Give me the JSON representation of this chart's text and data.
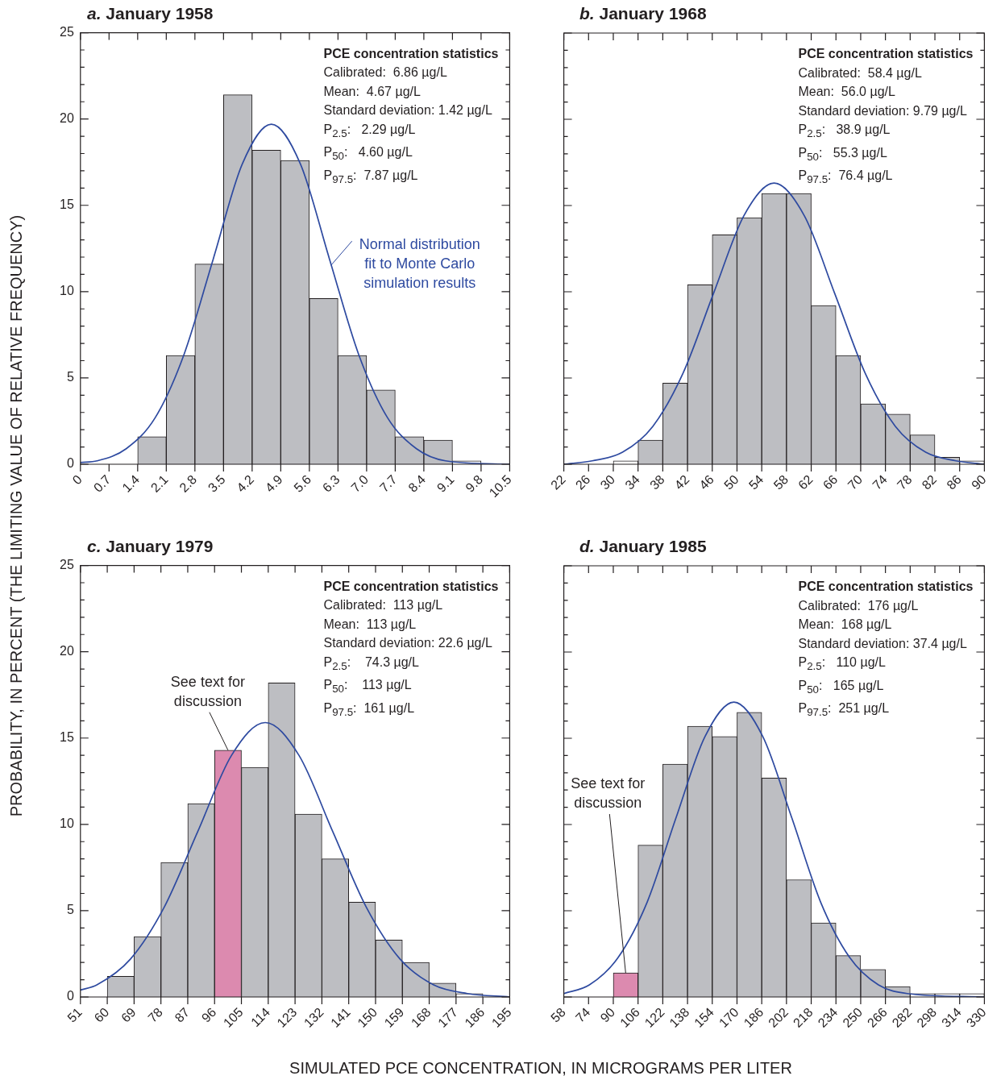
{
  "chart_data": [
    {
      "type": "histogram",
      "title": "a. January 1958",
      "xlabel": "SIMULATED PCE CONCENTRATION, IN MICROGRAMS PER LITER",
      "ylabel": "PROBABILITY, IN PERCENT (THE LIMITING VALUE OF RELATIVE FREQUENCY)",
      "bins": [
        0,
        0.7,
        1.4,
        2.1,
        2.8,
        3.5,
        4.2,
        4.9,
        5.6,
        6.3,
        7,
        7.7,
        8.4,
        9.1,
        9.8,
        10.5
      ],
      "xlim": [
        0,
        10.5
      ],
      "xticks": [
        0,
        0.7,
        1.4,
        2.1,
        2.8,
        3.5,
        4.2,
        4.9,
        5.6,
        6.3,
        {
          "value": 7,
          "label": "7.0"
        },
        7.7,
        8.4,
        9.1,
        9.8,
        10.5
      ],
      "ylim": [
        0,
        25
      ],
      "yticks": [
        0,
        {
          "value": 1,
          "label": null
        },
        {
          "value": 2,
          "label": null
        },
        {
          "value": 3,
          "label": null
        },
        {
          "value": 4,
          "label": null
        },
        5,
        {
          "value": 6,
          "label": null
        },
        {
          "value": 7,
          "label": null
        },
        {
          "value": 8,
          "label": null
        },
        {
          "value": 9,
          "label": null
        },
        10,
        {
          "value": 11,
          "label": null
        },
        {
          "value": 12,
          "label": null
        },
        {
          "value": 13,
          "label": null
        },
        {
          "value": 14,
          "label": null
        },
        15,
        {
          "value": 16,
          "label": null
        },
        {
          "value": 17,
          "label": null
        },
        {
          "value": 18,
          "label": null
        },
        {
          "value": 19,
          "label": null
        },
        20,
        {
          "value": 21,
          "label": null
        },
        {
          "value": 22,
          "label": null
        },
        {
          "value": 23,
          "label": null
        },
        {
          "value": 24,
          "label": null
        },
        25
      ],
      "series": [
        {
          "type": "histogram",
          "values": [
            0,
            0,
            1.6,
            6.3,
            11.6,
            21.4,
            18.2,
            17.6,
            9.6,
            6.3,
            4.3,
            1.6,
            1.4,
            0.2,
            0
          ],
          "colors": [
            "#bdbec2",
            "#bdbec2",
            "#bdbec2",
            "#bdbec2",
            "#bdbec2",
            "#bdbec2",
            "#bdbec2",
            "#bdbec2",
            "#bdbec2",
            "#bdbec2",
            "#bdbec2",
            "#bdbec2",
            "#bdbec2",
            "#ffffff",
            "#bdbec2"
          ]
        },
        {
          "type": "line",
          "name": "Normal distribution fit to Monte Carlo simulation results",
          "color": "#2e4aa0",
          "x": [
            0,
            0.41,
            1.12,
            1.83,
            2.54,
            3.25,
            3.96,
            4.67,
            5.38,
            6.09,
            6.8,
            7.51,
            8.22,
            8.93,
            10.5
          ],
          "values": [
            0.1,
            0.2,
            0.9,
            2.7,
            6.4,
            11.9,
            17.4,
            19.7,
            17.4,
            11.9,
            6.4,
            2.7,
            0.9,
            0.2,
            0
          ]
        }
      ],
      "annotations": [
        "PCE concentration statistics",
        "Calibrated:  6.86 µg/L",
        "Mean:  4.67 µg/L",
        "Standard deviation: 1.42 µg/L",
        "P$_{2.5}$:   2.29 µg/L",
        "P$_{50}$:   4.60 µg/L",
        "P$_{97.5}$:  7.87 µg/L"
      ]
    },
    {
      "type": "histogram",
      "title": "b. January 1968",
      "tick_labels": "x",
      "bins": [
        22,
        26,
        30,
        34,
        38,
        42,
        46,
        50,
        54,
        58,
        62,
        66,
        70,
        74,
        78,
        82,
        86,
        90
      ],
      "xlim": [
        22,
        90
      ],
      "xticks": [
        22,
        26,
        30,
        34,
        38,
        42,
        46,
        50,
        54,
        58,
        62,
        66,
        70,
        74,
        78,
        82,
        86,
        90
      ],
      "ylim": [
        0,
        25
      ],
      "yticks": [
        0,
        {
          "value": 1,
          "label": null
        },
        {
          "value": 2,
          "label": null
        },
        {
          "value": 3,
          "label": null
        },
        {
          "value": 4,
          "label": null
        },
        5,
        {
          "value": 6,
          "label": null
        },
        {
          "value": 7,
          "label": null
        },
        {
          "value": 8,
          "label": null
        },
        {
          "value": 9,
          "label": null
        },
        10,
        {
          "value": 11,
          "label": null
        },
        {
          "value": 12,
          "label": null
        },
        {
          "value": 13,
          "label": null
        },
        {
          "value": 14,
          "label": null
        },
        15,
        {
          "value": 16,
          "label": null
        },
        {
          "value": 17,
          "label": null
        },
        {
          "value": 18,
          "label": null
        },
        {
          "value": 19,
          "label": null
        },
        20,
        {
          "value": 21,
          "label": null
        },
        {
          "value": 22,
          "label": null
        },
        {
          "value": 23,
          "label": null
        },
        {
          "value": 24,
          "label": null
        },
        25
      ],
      "series": [
        {
          "type": "histogram",
          "values": [
            0,
            0,
            0.2,
            1.4,
            4.7,
            10.4,
            13.3,
            14.3,
            15.7,
            15.7,
            9.2,
            6.3,
            3.5,
            2.9,
            1.7,
            0.4,
            0.2
          ],
          "colors": [
            "#bdbec2",
            "#bdbec2",
            "#ffffff",
            "#bdbec2",
            "#bdbec2",
            "#bdbec2",
            "#bdbec2",
            "#bdbec2",
            "#bdbec2",
            "#bdbec2",
            "#bdbec2",
            "#bdbec2",
            "#bdbec2",
            "#bdbec2",
            "#bdbec2",
            "#bdbec2",
            "#ffffff"
          ]
        },
        {
          "type": "line",
          "color": "#2e4aa0",
          "x": [
            22,
            26.6,
            31.5,
            36.4,
            41.3,
            46.2,
            51.1,
            56,
            60.9,
            65.8,
            70.7,
            75.6,
            80.5,
            85.4,
            90
          ],
          "values": [
            0,
            0.2,
            0.7,
            2.2,
            5.3,
            9.9,
            14.4,
            16.3,
            14.4,
            9.9,
            5.3,
            2.2,
            0.7,
            0.2,
            0
          ]
        }
      ],
      "annotations": [
        "PCE concentration statistics",
        "Calibrated:  58.4 µg/L",
        "Mean:  56.0 µg/L",
        "Standard deviation: 9.79 µg/L",
        "P$_{2.5}$:   38.9 µg/L",
        "P$_{50}$:   55.3 µg/L",
        "P$_{97.5}$:  76.4 µg/L"
      ]
    },
    {
      "type": "histogram",
      "title": "c. January 1979",
      "bins": [
        51,
        60,
        69,
        78,
        87,
        96,
        105,
        114,
        123,
        132,
        141,
        150,
        159,
        168,
        177,
        186,
        195
      ],
      "xlim": [
        51,
        195
      ],
      "xticks": [
        51,
        60,
        69,
        78,
        87,
        96,
        105,
        114,
        123,
        132,
        141,
        150,
        159,
        168,
        177,
        186,
        195
      ],
      "ylim": [
        0,
        25
      ],
      "yticks": [
        0,
        {
          "value": 1,
          "label": null
        },
        {
          "value": 2,
          "label": null
        },
        {
          "value": 3,
          "label": null
        },
        {
          "value": 4,
          "label": null
        },
        5,
        {
          "value": 6,
          "label": null
        },
        {
          "value": 7,
          "label": null
        },
        {
          "value": 8,
          "label": null
        },
        {
          "value": 9,
          "label": null
        },
        10,
        {
          "value": 11,
          "label": null
        },
        {
          "value": 12,
          "label": null
        },
        {
          "value": 13,
          "label": null
        },
        {
          "value": 14,
          "label": null
        },
        15,
        {
          "value": 16,
          "label": null
        },
        {
          "value": 17,
          "label": null
        },
        {
          "value": 18,
          "label": null
        },
        {
          "value": 19,
          "label": null
        },
        20,
        {
          "value": 21,
          "label": null
        },
        {
          "value": 22,
          "label": null
        },
        {
          "value": 23,
          "label": null
        },
        {
          "value": 24,
          "label": null
        },
        25
      ],
      "series": [
        {
          "type": "histogram",
          "values": [
            0,
            1.2,
            3.5,
            7.8,
            11.2,
            14.3,
            13.3,
            18.2,
            10.6,
            8.0,
            5.5,
            3.3,
            2.0,
            0.8,
            0.2,
            0
          ],
          "colors": [
            "#bdbec2",
            "#bdbec2",
            "#bdbec2",
            "#bdbec2",
            "#bdbec2",
            "#dc8aaf",
            "#bdbec2",
            "#bdbec2",
            "#bdbec2",
            "#bdbec2",
            "#bdbec2",
            "#bdbec2",
            "#bdbec2",
            "#bdbec2",
            "#ffffff",
            "#bdbec2"
          ]
        },
        {
          "type": "line",
          "color": "#2e4aa0",
          "x": [
            51,
            56.5,
            67.8,
            79.1,
            90.4,
            101.7,
            113,
            124.3,
            135.6,
            146.9,
            158.2,
            169.5,
            180.8,
            195
          ],
          "values": [
            0.4,
            0.7,
            2.2,
            5.2,
            9.6,
            14,
            15.9,
            14,
            9.6,
            5.2,
            2.2,
            0.7,
            0.2,
            0
          ]
        }
      ],
      "annotations": [
        "PCE concentration statistics",
        "Calibrated:  113 µg/L",
        "Mean:  113 µg/L",
        "Standard deviation: 22.6 µg/L",
        "P$_{2.5}$:    74.3 µg/L",
        "P$_{50}$:    113 µg/L",
        "P$_{97.5}$:  161 µg/L",
        {
          "text": "See text for discussion",
          "x": 100.5,
          "y": 14.3
        }
      ]
    },
    {
      "type": "histogram",
      "title": "d. January 1985",
      "tick_labels": "x",
      "bins": [
        58,
        74,
        90,
        106,
        122,
        138,
        154,
        170,
        186,
        202,
        218,
        234,
        250,
        266,
        282,
        298,
        314,
        330
      ],
      "xlim": [
        58,
        330
      ],
      "xticks": [
        58,
        74,
        90,
        106,
        122,
        138,
        154,
        170,
        186,
        202,
        218,
        234,
        250,
        266,
        282,
        298,
        314,
        330
      ],
      "ylim": [
        0,
        25
      ],
      "yticks": [
        0,
        {
          "value": 1,
          "label": null
        },
        {
          "value": 2,
          "label": null
        },
        {
          "value": 3,
          "label": null
        },
        {
          "value": 4,
          "label": null
        },
        5,
        {
          "value": 6,
          "label": null
        },
        {
          "value": 7,
          "label": null
        },
        {
          "value": 8,
          "label": null
        },
        {
          "value": 9,
          "label": null
        },
        10,
        {
          "value": 11,
          "label": null
        },
        {
          "value": 12,
          "label": null
        },
        {
          "value": 13,
          "label": null
        },
        {
          "value": 14,
          "label": null
        },
        15,
        {
          "value": 16,
          "label": null
        },
        {
          "value": 17,
          "label": null
        },
        {
          "value": 18,
          "label": null
        },
        {
          "value": 19,
          "label": null
        },
        20,
        {
          "value": 21,
          "label": null
        },
        {
          "value": 22,
          "label": null
        },
        {
          "value": 23,
          "label": null
        },
        {
          "value": 24,
          "label": null
        },
        25
      ],
      "series": [
        {
          "type": "histogram",
          "values": [
            0,
            0,
            1.4,
            8.8,
            13.5,
            15.7,
            15.1,
            16.5,
            12.7,
            6.8,
            4.3,
            2.4,
            1.6,
            0.6,
            0.2,
            0.2,
            0.2
          ],
          "colors": [
            "#bdbec2",
            "#bdbec2",
            "#dc8aaf",
            "#bdbec2",
            "#bdbec2",
            "#bdbec2",
            "#bdbec2",
            "#bdbec2",
            "#bdbec2",
            "#bdbec2",
            "#bdbec2",
            "#bdbec2",
            "#bdbec2",
            "#bdbec2",
            "#ffffff",
            "#ffffff",
            "#ffffff"
          ]
        },
        {
          "type": "line",
          "color": "#2e4aa0",
          "x": [
            58,
            74.5,
            93.2,
            111.9,
            130.6,
            149.3,
            168,
            186.7,
            205.4,
            224.1,
            242.8,
            261.5,
            280.2,
            330
          ],
          "values": [
            0.2,
            0.7,
            2.3,
            5.5,
            10.4,
            15.1,
            17.1,
            15.1,
            10.4,
            5.5,
            2.3,
            0.7,
            0.2,
            0
          ]
        }
      ],
      "annotations": [
        "PCE concentration statistics",
        "Calibrated:  176 µg/L",
        "Mean:  168 µg/L",
        "Standard deviation: 37.4 µg/L",
        "P$_{2.5}$:   110 µg/L",
        "P$_{50}$:   165 µg/L",
        "P$_{97.5}$:  251 µg/L",
        {
          "text": "See text for discussion",
          "x": 98,
          "y": 1.4
        }
      ]
    }
  ]
}
